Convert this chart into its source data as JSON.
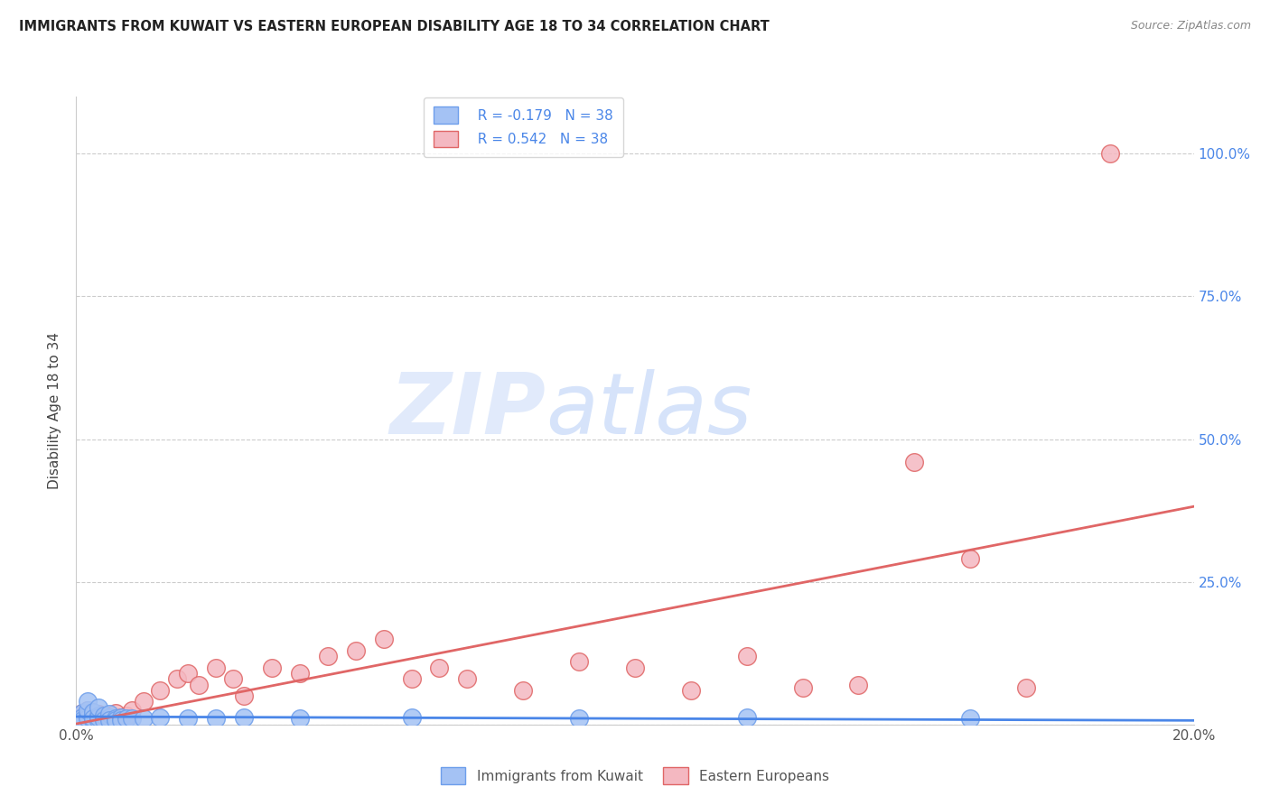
{
  "title": "IMMIGRANTS FROM KUWAIT VS EASTERN EUROPEAN DISABILITY AGE 18 TO 34 CORRELATION CHART",
  "source": "Source: ZipAtlas.com",
  "ylabel": "Disability Age 18 to 34",
  "xlim": [
    0.0,
    0.2
  ],
  "ylim": [
    0.0,
    1.1
  ],
  "ytick_positions": [
    0.0,
    0.25,
    0.5,
    0.75,
    1.0
  ],
  "ytick_right_labels": [
    "",
    "25.0%",
    "50.0%",
    "75.0%",
    "100.0%"
  ],
  "watermark_zip": "ZIP",
  "watermark_atlas": "atlas",
  "legend_r1": "R = -0.179",
  "legend_n1": "N = 38",
  "legend_r2": "R = 0.542",
  "legend_n2": "N = 38",
  "legend_label1": "Immigrants from Kuwait",
  "legend_label2": "Eastern Europeans",
  "color_blue_fill": "#a4c2f4",
  "color_pink_fill": "#f4b8c1",
  "color_blue_edge": "#6d9eeb",
  "color_pink_edge": "#e06666",
  "color_blue_line": "#4a86e8",
  "color_pink_line": "#e06666",
  "color_right_axis": "#4a86e8",
  "grid_color": "#cccccc",
  "kuwait_x": [
    0.001,
    0.001,
    0.001,
    0.002,
    0.002,
    0.002,
    0.002,
    0.003,
    0.003,
    0.003,
    0.003,
    0.003,
    0.004,
    0.004,
    0.004,
    0.004,
    0.005,
    0.005,
    0.005,
    0.006,
    0.006,
    0.006,
    0.007,
    0.007,
    0.008,
    0.008,
    0.009,
    0.01,
    0.012,
    0.015,
    0.02,
    0.025,
    0.03,
    0.04,
    0.06,
    0.09,
    0.12,
    0.16
  ],
  "kuwait_y": [
    0.02,
    0.012,
    0.008,
    0.015,
    0.01,
    0.025,
    0.04,
    0.008,
    0.012,
    0.018,
    0.022,
    0.01,
    0.015,
    0.008,
    0.012,
    0.03,
    0.01,
    0.015,
    0.008,
    0.012,
    0.018,
    0.008,
    0.01,
    0.008,
    0.012,
    0.008,
    0.01,
    0.01,
    0.01,
    0.012,
    0.01,
    0.01,
    0.012,
    0.01,
    0.012,
    0.01,
    0.012,
    0.01
  ],
  "eastern_x": [
    0.001,
    0.001,
    0.002,
    0.003,
    0.004,
    0.005,
    0.006,
    0.007,
    0.008,
    0.009,
    0.01,
    0.012,
    0.015,
    0.018,
    0.02,
    0.022,
    0.025,
    0.028,
    0.03,
    0.035,
    0.04,
    0.045,
    0.05,
    0.055,
    0.06,
    0.065,
    0.07,
    0.08,
    0.09,
    0.1,
    0.11,
    0.12,
    0.13,
    0.14,
    0.15,
    0.16,
    0.17,
    0.185
  ],
  "eastern_y": [
    0.02,
    0.012,
    0.025,
    0.015,
    0.018,
    0.01,
    0.015,
    0.02,
    0.012,
    0.015,
    0.025,
    0.04,
    0.06,
    0.08,
    0.09,
    0.07,
    0.1,
    0.08,
    0.05,
    0.1,
    0.09,
    0.12,
    0.13,
    0.15,
    0.08,
    0.1,
    0.08,
    0.06,
    0.11,
    0.1,
    0.06,
    0.12,
    0.065,
    0.07,
    0.46,
    0.29,
    0.065,
    1.0
  ]
}
